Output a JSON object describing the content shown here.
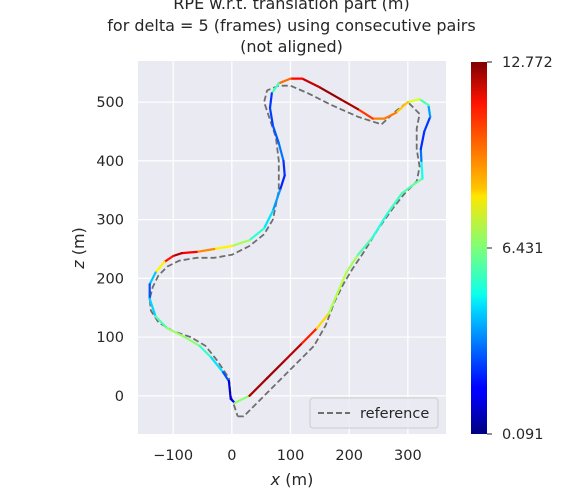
{
  "chart_data": {
    "type": "line",
    "title_lines": [
      "RPE w.r.t. translation part (m)",
      "for delta = 5 (frames) using consecutive pairs",
      "(not aligned)"
    ],
    "xlabel_var": "x",
    "xlabel_unit": "(m)",
    "ylabel_var": "z",
    "ylabel_unit": "(m)",
    "xlim": [
      -160,
      365
    ],
    "ylim": [
      -65,
      570
    ],
    "xticks": [
      {
        "value": -100,
        "label": "−100"
      },
      {
        "value": 0,
        "label": "0"
      },
      {
        "value": 100,
        "label": "100"
      },
      {
        "value": 200,
        "label": "200"
      },
      {
        "value": 300,
        "label": "300"
      }
    ],
    "yticks": [
      {
        "value": 0,
        "label": "0"
      },
      {
        "value": 100,
        "label": "100"
      },
      {
        "value": 200,
        "label": "200"
      },
      {
        "value": 300,
        "label": "300"
      },
      {
        "value": 400,
        "label": "400"
      },
      {
        "value": 500,
        "label": "500"
      }
    ],
    "grid": true,
    "legend": {
      "position": "lower-right",
      "entries": [
        "reference"
      ]
    },
    "colorbar": {
      "min": 0.091,
      "max": 12.772,
      "ticks": [
        "0.091",
        "6.431",
        "12.772"
      ],
      "colormap": "jet"
    },
    "series": [
      {
        "name": "reference",
        "style": "dashed",
        "color": "#6e6e6e",
        "points": [
          [
            10,
            -35
          ],
          [
            20,
            -35
          ],
          [
            60,
            5
          ],
          [
            100,
            45
          ],
          [
            140,
            85
          ],
          [
            160,
            120
          ],
          [
            175,
            160
          ],
          [
            190,
            190
          ],
          [
            205,
            215
          ],
          [
            225,
            245
          ],
          [
            250,
            285
          ],
          [
            275,
            320
          ],
          [
            295,
            345
          ],
          [
            315,
            365
          ],
          [
            320,
            390
          ],
          [
            315,
            420
          ],
          [
            315,
            455
          ],
          [
            320,
            480
          ],
          [
            300,
            500
          ],
          [
            280,
            485
          ],
          [
            255,
            462
          ],
          [
            215,
            475
          ],
          [
            170,
            495
          ],
          [
            130,
            515
          ],
          [
            100,
            528
          ],
          [
            80,
            528
          ],
          [
            60,
            520
          ],
          [
            55,
            500
          ],
          [
            65,
            470
          ],
          [
            75,
            440
          ],
          [
            80,
            400
          ],
          [
            80,
            350
          ],
          [
            70,
            300
          ],
          [
            55,
            275
          ],
          [
            30,
            255
          ],
          [
            0,
            240
          ],
          [
            -30,
            235
          ],
          [
            -60,
            235
          ],
          [
            -90,
            230
          ],
          [
            -110,
            220
          ],
          [
            -125,
            205
          ],
          [
            -135,
            185
          ],
          [
            -140,
            165
          ],
          [
            -138,
            145
          ],
          [
            -125,
            125
          ],
          [
            -100,
            110
          ],
          [
            -70,
            100
          ],
          [
            -45,
            85
          ],
          [
            -25,
            60
          ],
          [
            -5,
            30
          ],
          [
            -2,
            0
          ],
          [
            5,
            -20
          ],
          [
            10,
            -35
          ]
        ]
      },
      {
        "name": "estimate",
        "style": "colormap",
        "points": [
          [
            -2,
            -5
          ],
          [
            5,
            -12
          ],
          [
            30,
            0
          ],
          [
            60,
            30
          ],
          [
            90,
            60
          ],
          [
            120,
            90
          ],
          [
            145,
            115
          ],
          [
            165,
            140
          ],
          [
            180,
            175
          ],
          [
            195,
            210
          ],
          [
            215,
            240
          ],
          [
            240,
            270
          ],
          [
            265,
            310
          ],
          [
            290,
            345
          ],
          [
            310,
            360
          ],
          [
            325,
            370
          ],
          [
            323,
            400
          ],
          [
            322,
            420
          ],
          [
            328,
            450
          ],
          [
            338,
            475
          ],
          [
            335,
            495
          ],
          [
            320,
            505
          ],
          [
            300,
            500
          ],
          [
            280,
            482
          ],
          [
            260,
            472
          ],
          [
            240,
            472
          ],
          [
            215,
            488
          ],
          [
            185,
            505
          ],
          [
            150,
            525
          ],
          [
            120,
            540
          ],
          [
            100,
            540
          ],
          [
            80,
            532
          ],
          [
            68,
            515
          ],
          [
            65,
            490
          ],
          [
            70,
            460
          ],
          [
            80,
            430
          ],
          [
            88,
            400
          ],
          [
            90,
            375
          ],
          [
            82,
            350
          ],
          [
            70,
            315
          ],
          [
            55,
            285
          ],
          [
            30,
            265
          ],
          [
            0,
            255
          ],
          [
            -30,
            250
          ],
          [
            -60,
            245
          ],
          [
            -85,
            243
          ],
          [
            -100,
            238
          ],
          [
            -115,
            228
          ],
          [
            -130,
            210
          ],
          [
            -140,
            190
          ],
          [
            -140,
            165
          ],
          [
            -130,
            135
          ],
          [
            -110,
            115
          ],
          [
            -80,
            100
          ],
          [
            -55,
            85
          ],
          [
            -35,
            65
          ],
          [
            -15,
            40
          ],
          [
            -5,
            25
          ],
          [
            -2,
            -5
          ]
        ],
        "errors": [
          1.5,
          1.2,
          12.0,
          12.5,
          12.3,
          11.8,
          9.8,
          7.2,
          6.8,
          7.5,
          6.2,
          5.4,
          5.2,
          6.0,
          5.8,
          6.4,
          3.8,
          2.4,
          2.0,
          2.8,
          4.5,
          7.2,
          8.0,
          9.4,
          10.0,
          9.2,
          11.8,
          12.7,
          12.3,
          11.5,
          10.8,
          8.9,
          2.4,
          2.3,
          2.6,
          2.9,
          3.4,
          1.2,
          3.0,
          4.2,
          4.8,
          6.0,
          7.8,
          8.5,
          10.5,
          12.0,
          12.2,
          9.8,
          6.5,
          1.8,
          3.5,
          5.2,
          6.5,
          7.0,
          6.2,
          4.8,
          4.2,
          1.2,
          1.0
        ]
      }
    ]
  }
}
